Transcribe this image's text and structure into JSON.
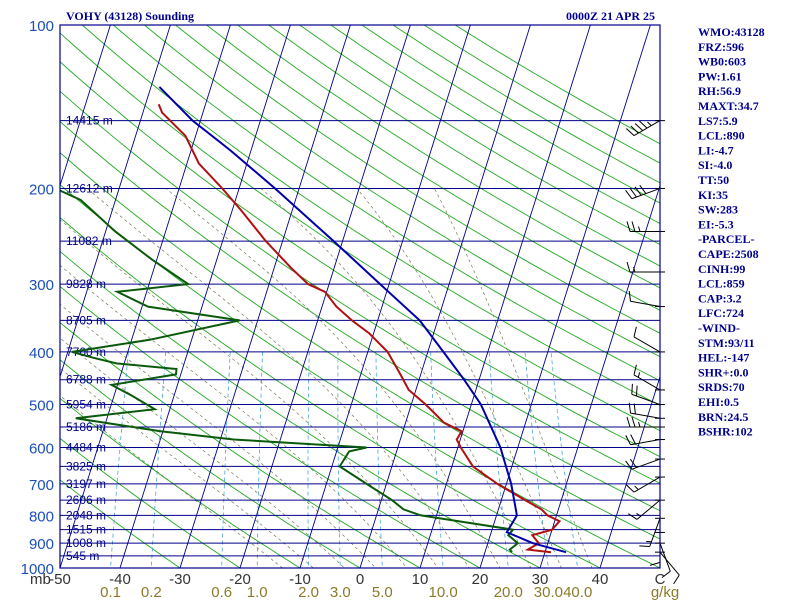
{
  "header": {
    "station": "VOHY (43128) Sounding",
    "time": "0000Z 21 APR 25"
  },
  "colors": {
    "isobar": "#00008b",
    "skew_isotherm": "#00008b",
    "dry_adiabat": "#22aa22",
    "moist_adiabat": "#7a7a55",
    "mixing_ratio": "#4aa8d8",
    "temperature": "#b01010",
    "dewpoint": "#0b5a0b",
    "parcel": "#0000aa",
    "wind": "#000000",
    "pressure_tick": "#1c4fb8",
    "temp_tick": "#333333",
    "mixing_tick": "#8a7a2a",
    "index_text": "#00008b"
  },
  "chart_data": {
    "type": "line",
    "title": "",
    "xlabel": "",
    "ylabel": "",
    "skew_t": true,
    "y_axis": {
      "scale": "log",
      "range": [
        1000,
        100
      ],
      "label": "mb"
    },
    "x_axis": {
      "range": [
        -50,
        50
      ],
      "units": "C"
    },
    "pressure_labels": [
      "100",
      "200",
      "300",
      "400",
      "500",
      "600",
      "700",
      "800",
      "900",
      "1000"
    ],
    "pressure_values": [
      100,
      200,
      300,
      400,
      500,
      600,
      700,
      800,
      900,
      1000
    ],
    "temp_tick_labels": [
      "-50",
      "-40",
      "-30",
      "-20",
      "-10",
      "0",
      "10",
      "20",
      "30",
      "40",
      "C"
    ],
    "temp_tick_values": [
      -50,
      -40,
      -30,
      -20,
      -10,
      0,
      10,
      20,
      30,
      40,
      50
    ],
    "mb_label": "mb",
    "mixing_ratio_labels": [
      "0.1",
      "0.2",
      "0.6",
      "1.0",
      "2.0",
      "3.0",
      "5.0",
      "10.0",
      "20.0",
      "30.0",
      "40.0",
      "g/kg"
    ],
    "mixing_ratio_values": [
      0.1,
      0.2,
      0.6,
      1.0,
      2.0,
      3.0,
      5.0,
      10.0,
      20.0,
      30.0,
      40.0
    ],
    "heights": [
      {
        "p": 150,
        "label": "14415 m"
      },
      {
        "p": 200,
        "label": "12612 m"
      },
      {
        "p": 250,
        "label": "11082 m"
      },
      {
        "p": 300,
        "label": "9828 m"
      },
      {
        "p": 350,
        "label": "8705 m"
      },
      {
        "p": 400,
        "label": "7700 m"
      },
      {
        "p": 450,
        "label": "6788 m"
      },
      {
        "p": 500,
        "label": "5954 m"
      },
      {
        "p": 550,
        "label": "5186 m"
      },
      {
        "p": 600,
        "label": "4484 m"
      },
      {
        "p": 650,
        "label": "3825 m"
      },
      {
        "p": 700,
        "label": "3197 m"
      },
      {
        "p": 750,
        "label": "2606 m"
      },
      {
        "p": 800,
        "label": "2048 m"
      },
      {
        "p": 850,
        "label": "1515 m"
      },
      {
        "p": 900,
        "label": "1008 m"
      },
      {
        "p": 950,
        "label": "545 m"
      }
    ],
    "series": [
      {
        "key": "temperature",
        "points": [
          [
            935,
            31.0
          ],
          [
            925,
            27.0
          ],
          [
            900,
            28.5
          ],
          [
            870,
            27.0
          ],
          [
            850,
            30.0
          ],
          [
            820,
            30.8
          ],
          [
            800,
            28.5
          ],
          [
            780,
            27.2
          ],
          [
            750,
            24.0
          ],
          [
            700,
            18.5
          ],
          [
            650,
            13.5
          ],
          [
            600,
            10.5
          ],
          [
            580,
            9.4
          ],
          [
            560,
            9.8
          ],
          [
            540,
            6.4
          ],
          [
            500,
            2.4
          ],
          [
            470,
            -1.2
          ],
          [
            440,
            -3.4
          ],
          [
            400,
            -6.7
          ],
          [
            370,
            -10.7
          ],
          [
            350,
            -14.3
          ],
          [
            330,
            -17.6
          ],
          [
            310,
            -20.3
          ],
          [
            300,
            -23.5
          ],
          [
            280,
            -27.2
          ],
          [
            250,
            -32.8
          ],
          [
            220,
            -38.4
          ],
          [
            200,
            -42.8
          ],
          [
            180,
            -48.0
          ],
          [
            160,
            -51.7
          ],
          [
            145,
            -56.8
          ],
          [
            140,
            -57.8
          ]
        ]
      },
      {
        "key": "dewpoint",
        "points": [
          [
            935,
            24.5
          ],
          [
            925,
            24.0
          ],
          [
            900,
            25.0
          ],
          [
            870,
            23.0
          ],
          [
            850,
            23.5
          ],
          [
            820,
            14.0
          ],
          [
            800,
            7.4
          ],
          [
            780,
            4.2
          ],
          [
            750,
            1.8
          ],
          [
            700,
            -3.3
          ],
          [
            650,
            -8.7
          ],
          [
            610,
            -7.9
          ],
          [
            600,
            -5.2
          ],
          [
            580,
            -27.8
          ],
          [
            560,
            -40.4
          ],
          [
            530,
            -55.2
          ],
          [
            510,
            -42.5
          ],
          [
            480,
            -47.3
          ],
          [
            460,
            -51.0
          ],
          [
            440,
            -40.8
          ],
          [
            430,
            -41.0
          ],
          [
            420,
            -51.3
          ],
          [
            410,
            -55.5
          ],
          [
            400,
            -59.3
          ],
          [
            380,
            -47.0
          ],
          [
            350,
            -33.0
          ],
          [
            330,
            -49.0
          ],
          [
            310,
            -54.9
          ],
          [
            300,
            -43.5
          ],
          [
            270,
            -50.9
          ],
          [
            240,
            -58.4
          ],
          [
            210,
            -65.8
          ],
          [
            200,
            -70.6
          ],
          [
            180,
            -75.4
          ],
          [
            165,
            -75.5
          ],
          [
            150,
            -79.4
          ],
          [
            140,
            -79.8
          ]
        ]
      },
      {
        "key": "parcel",
        "points": [
          [
            935,
            33.5
          ],
          [
            900,
            27.5
          ],
          [
            859,
            22.6
          ],
          [
            800,
            23.4
          ],
          [
            700,
            20.8
          ],
          [
            600,
            17.1
          ],
          [
            500,
            11.6
          ],
          [
            450,
            7.5
          ],
          [
            400,
            2.6
          ],
          [
            350,
            -3.0
          ],
          [
            300,
            -11.5
          ],
          [
            250,
            -21.5
          ],
          [
            200,
            -34.0
          ],
          [
            170,
            -43.5
          ],
          [
            150,
            -51.3
          ],
          [
            130,
            -58.6
          ]
        ]
      }
    ],
    "wind_barbs": [
      {
        "p": 150,
        "dir": 240,
        "spd": 45
      },
      {
        "p": 200,
        "dir": 250,
        "spd": 40
      },
      {
        "p": 240,
        "dir": 270,
        "spd": 25
      },
      {
        "p": 285,
        "dir": 270,
        "spd": 15
      },
      {
        "p": 330,
        "dir": 280,
        "spd": 10
      },
      {
        "p": 400,
        "dir": 300,
        "spd": 10
      },
      {
        "p": 470,
        "dir": 300,
        "spd": 15
      },
      {
        "p": 500,
        "dir": 290,
        "spd": 20
      },
      {
        "p": 530,
        "dir": 280,
        "spd": 20
      },
      {
        "p": 550,
        "dir": 270,
        "spd": 25
      },
      {
        "p": 580,
        "dir": 260,
        "spd": 20
      },
      {
        "p": 630,
        "dir": 250,
        "spd": 20
      },
      {
        "p": 680,
        "dir": 240,
        "spd": 15
      },
      {
        "p": 750,
        "dir": 230,
        "spd": 15
      },
      {
        "p": 810,
        "dir": 200,
        "spd": 15
      },
      {
        "p": 860,
        "dir": 180,
        "spd": 10
      },
      {
        "p": 900,
        "dir": 160,
        "spd": 10
      },
      {
        "p": 935,
        "dir": 140,
        "spd": 10
      }
    ]
  },
  "indices": [
    "WMO:43128",
    "FRZ:596",
    "WB0:603",
    "PW:1.61",
    "RH:56.9",
    "MAXT:34.7",
    "LS7:5.9",
    "LCL:890",
    "LI:-4.7",
    "SI:-4.0",
    "TT:50",
    "KI:35",
    "SW:283",
    "EI:-5.3",
    "-PARCEL-",
    "CAPE:2508",
    "CINH:99",
    "LCL:859",
    "CAP:3.2",
    "LFC:724",
    "-WIND-",
    "STM:93/11",
    "HEL:-147",
    "SHR+:0.0",
    "SRDS:70",
    "EHI:0.5",
    "BRN:24.5",
    "BSHR:102"
  ]
}
